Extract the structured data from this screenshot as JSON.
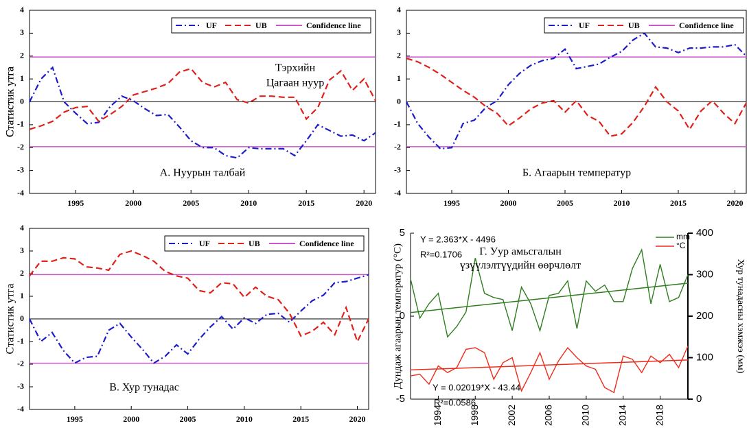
{
  "chart_data": [
    {
      "type": "line",
      "caption": "А. Нуурын талбай",
      "annotation_lines": [
        "Тэрхийн",
        "Цагаан нуур"
      ],
      "ylabel": "Статистик утга",
      "x": [
        1991,
        1992,
        1993,
        1994,
        1995,
        1996,
        1997,
        1998,
        1999,
        2000,
        2001,
        2002,
        2003,
        2004,
        2005,
        2006,
        2007,
        2008,
        2009,
        2010,
        2011,
        2012,
        2013,
        2014,
        2015,
        2016,
        2017,
        2018,
        2019,
        2020,
        2021
      ],
      "xlim": [
        1991,
        2021
      ],
      "xticks": [
        1995,
        2000,
        2005,
        2010,
        2015,
        2020
      ],
      "ylim": [
        -4,
        4
      ],
      "yticks": [
        -4,
        -3,
        -2,
        -1,
        0,
        1,
        2,
        3,
        4
      ],
      "series": [
        {
          "name": "UF",
          "color": "#1c1ccc",
          "dash": "dashdot",
          "values": [
            0,
            1.0,
            1.5,
            0,
            -0.5,
            -0.95,
            -0.9,
            -0.2,
            0.25,
            0.05,
            -0.3,
            -0.6,
            -0.55,
            -1.1,
            -1.7,
            -2.0,
            -2.0,
            -2.35,
            -2.45,
            -2.0,
            -2.05,
            -2.05,
            -2.05,
            -2.35,
            -1.7,
            -1.0,
            -1.25,
            -1.5,
            -1.45,
            -1.7,
            -1.35
          ]
        },
        {
          "name": "UB",
          "color": "#e0201a",
          "dash": "dashed",
          "values": [
            -1.2,
            -1.05,
            -0.85,
            -0.45,
            -0.25,
            -0.2,
            -0.85,
            -0.55,
            -0.2,
            0.3,
            0.45,
            0.6,
            0.8,
            1.3,
            1.45,
            0.85,
            0.65,
            0.85,
            0.1,
            -0.05,
            0.25,
            0.25,
            0.2,
            0.2,
            -0.75,
            -0.25,
            0.95,
            1.35,
            0.5,
            1.0,
            0.05
          ]
        }
      ],
      "confidence": {
        "name": "Confidence line",
        "color": "#cc55cc",
        "values": [
          -1.96,
          1.96
        ]
      }
    },
    {
      "type": "line",
      "caption": "Б. Агаарын температур",
      "ylabel": "Статистик утга",
      "x": [
        1991,
        1992,
        1993,
        1994,
        1995,
        1996,
        1997,
        1998,
        1999,
        2000,
        2001,
        2002,
        2003,
        2004,
        2005,
        2006,
        2007,
        2008,
        2009,
        2010,
        2011,
        2012,
        2013,
        2014,
        2015,
        2016,
        2017,
        2018,
        2019,
        2020,
        2021
      ],
      "xlim": [
        1991,
        2021
      ],
      "xticks": [
        1995,
        2000,
        2005,
        2010,
        2015,
        2020
      ],
      "ylim": [
        -4,
        4
      ],
      "yticks": [
        -4,
        -3,
        -2,
        -1,
        0,
        1,
        2,
        3,
        4
      ],
      "series": [
        {
          "name": "UF",
          "color": "#1c1ccc",
          "dash": "dashdot",
          "values": [
            0,
            -0.95,
            -1.55,
            -2.05,
            -2.0,
            -0.95,
            -0.8,
            -0.25,
            0.05,
            0.75,
            1.25,
            1.6,
            1.8,
            1.9,
            2.3,
            1.45,
            1.55,
            1.65,
            1.95,
            2.2,
            2.7,
            3.0,
            2.4,
            2.35,
            2.15,
            2.35,
            2.35,
            2.4,
            2.4,
            2.5,
            2.0
          ]
        },
        {
          "name": "UB",
          "color": "#e0201a",
          "dash": "dashed",
          "values": [
            1.9,
            1.75,
            1.5,
            1.2,
            0.85,
            0.5,
            0.2,
            -0.2,
            -0.5,
            -1.05,
            -0.7,
            -0.3,
            -0.05,
            0.05,
            -0.45,
            0.05,
            -0.6,
            -0.85,
            -1.5,
            -1.4,
            -0.9,
            -0.2,
            0.65,
            0.0,
            -0.4,
            -1.2,
            -0.4,
            0.05,
            -0.5,
            -0.95,
            -0.05
          ]
        }
      ],
      "confidence": {
        "name": "Confidence line",
        "color": "#cc55cc",
        "values": [
          -1.96,
          1.96
        ]
      }
    },
    {
      "type": "line",
      "caption": "В. Хур тунадас",
      "ylabel": "Статистик утга",
      "x": [
        1991,
        1992,
        1993,
        1994,
        1995,
        1996,
        1997,
        1998,
        1999,
        2000,
        2001,
        2002,
        2003,
        2004,
        2005,
        2006,
        2007,
        2008,
        2009,
        2010,
        2011,
        2012,
        2013,
        2014,
        2015,
        2016,
        2017,
        2018,
        2019,
        2020,
        2021
      ],
      "xlim": [
        1991,
        2021
      ],
      "xticks": [
        1995,
        2000,
        2005,
        2010,
        2015,
        2020
      ],
      "ylim": [
        -4,
        4
      ],
      "yticks": [
        -4,
        -3,
        -2,
        -1,
        0,
        1,
        2,
        3,
        4
      ],
      "series": [
        {
          "name": "UF",
          "color": "#1c1ccc",
          "dash": "dashdot",
          "values": [
            0,
            -1.0,
            -0.6,
            -1.4,
            -1.95,
            -1.7,
            -1.65,
            -0.5,
            -0.2,
            -0.8,
            -1.35,
            -1.95,
            -1.65,
            -1.15,
            -1.55,
            -0.9,
            -0.35,
            0.1,
            -0.45,
            0.05,
            -0.2,
            0.2,
            0.25,
            -0.15,
            0.35,
            0.8,
            1.05,
            1.6,
            1.65,
            1.8,
            1.95
          ]
        },
        {
          "name": "UB",
          "color": "#e0201a",
          "dash": "dashed",
          "values": [
            1.9,
            2.55,
            2.55,
            2.7,
            2.65,
            2.3,
            2.25,
            2.15,
            2.85,
            3.0,
            2.8,
            2.55,
            2.1,
            1.9,
            1.8,
            1.25,
            1.15,
            1.6,
            1.55,
            0.95,
            1.4,
            1.0,
            0.85,
            0.25,
            -0.75,
            -0.55,
            -0.15,
            -0.7,
            0.5,
            -1.0,
            0.0
          ]
        }
      ],
      "confidence": {
        "name": "Confidence line",
        "color": "#cc55cc",
        "values": [
          -1.96,
          1.96
        ]
      }
    },
    {
      "type": "dual_line",
      "title_lines": [
        "Г. Уур амьсгалын",
        "үзүүлэлтүүдийн өөрчлөлт"
      ],
      "ylabel": "Дундаж агаарын температур (°C)",
      "y2label": "Хур тунадасны хэмжээ (мм)",
      "x": [
        1991,
        1992,
        1993,
        1994,
        1995,
        1996,
        1997,
        1998,
        1999,
        2000,
        2001,
        2002,
        2003,
        2004,
        2005,
        2006,
        2007,
        2008,
        2009,
        2010,
        2011,
        2012,
        2013,
        2014,
        2015,
        2016,
        2017,
        2018,
        2019,
        2020,
        2021
      ],
      "xlim": [
        1991,
        2021
      ],
      "xticks": [
        1994,
        1998,
        2002,
        2006,
        2010,
        2014,
        2018
      ],
      "ylim": [
        -5,
        5
      ],
      "yticks": [
        -5,
        0,
        5
      ],
      "y2lim": [
        0,
        400
      ],
      "y2ticks": [
        0,
        100,
        200,
        300,
        400
      ],
      "series": [
        {
          "name": "mm",
          "color": "#2e7d1e",
          "axis": "y2",
          "values": [
            290,
            195,
            230,
            255,
            150,
            175,
            210,
            340,
            255,
            245,
            240,
            165,
            270,
            230,
            165,
            250,
            255,
            285,
            170,
            285,
            260,
            275,
            235,
            235,
            315,
            360,
            230,
            325,
            235,
            245,
            300
          ]
        },
        {
          "name": "°C",
          "color": "#ee2a1a",
          "values": [
            -3.6,
            -3.5,
            -4.1,
            -3.0,
            -3.4,
            -3.1,
            -2.0,
            -1.9,
            -2.2,
            -3.8,
            -2.8,
            -2.5,
            -4.5,
            -3.4,
            -2.2,
            -3.8,
            -2.7,
            -1.9,
            -2.5,
            -3.0,
            -3.2,
            -4.3,
            -4.6,
            -2.4,
            -2.6,
            -3.4,
            -2.4,
            -2.8,
            -2.3,
            -3.1,
            -1.8
          ]
        }
      ],
      "trendlines": [
        {
          "color": "#2e7d1e",
          "axis": "y2",
          "x": [
            1991,
            2021
          ],
          "values": [
            208.7,
            279.6
          ],
          "equation": "Y = 2.363*X - 4496",
          "r2": "R²=0.1706"
        },
        {
          "color": "#ee2a1a",
          "x": [
            1991,
            2021
          ],
          "values": [
            -3.24,
            -2.64
          ],
          "equation": "Y = 0.02019*X - 43.44",
          "r2": "R²=0.0586"
        }
      ]
    }
  ]
}
